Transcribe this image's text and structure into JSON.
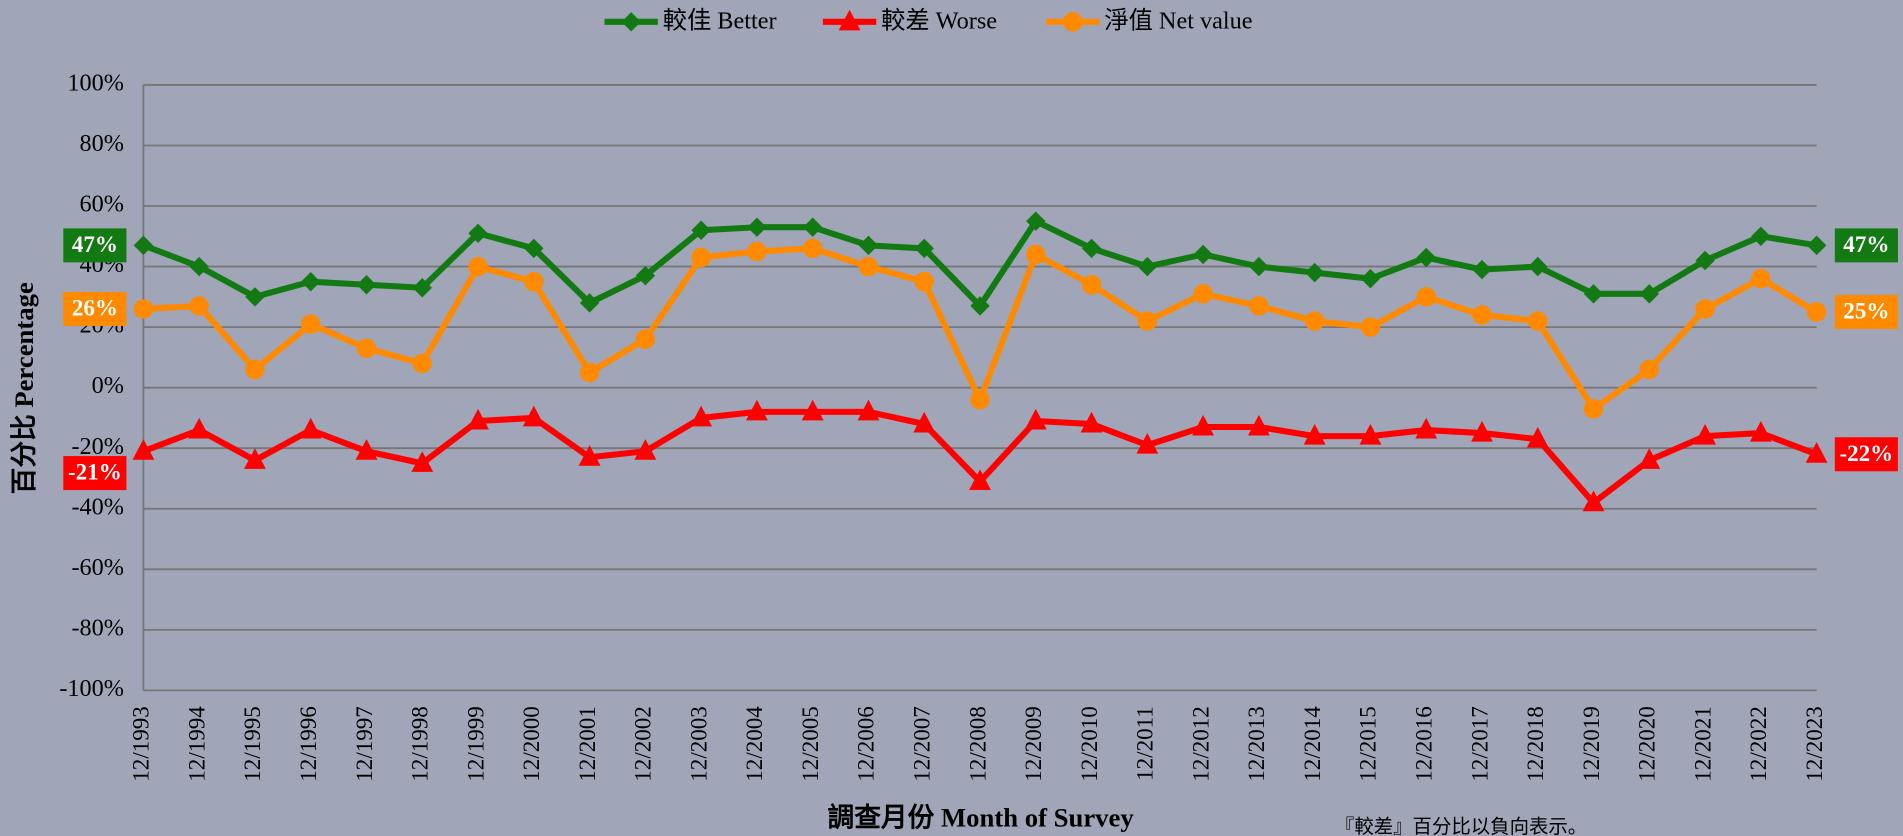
{
  "chart_data": {
    "type": "line",
    "y_label": "百分比 Percentage",
    "x_label": "調查月份 Month of Survey",
    "note": "『較差』百分比以負向表示。",
    "categories": [
      "12/1993",
      "12/1994",
      "12/1995",
      "12/1996",
      "12/1997",
      "12/1998",
      "12/1999",
      "12/2000",
      "12/2001",
      "12/2002",
      "12/2003",
      "12/2004",
      "12/2005",
      "12/2006",
      "12/2007",
      "12/2008",
      "12/2009",
      "12/2010",
      "12/2011",
      "12/2012",
      "12/2013",
      "12/2014",
      "12/2015",
      "12/2016",
      "12/2017",
      "12/2018",
      "12/2019",
      "12/2020",
      "12/2021",
      "12/2022",
      "12/2023"
    ],
    "series": [
      {
        "name": "較佳 Better",
        "color": "#137a13",
        "marker": "diamond",
        "values": [
          47,
          40,
          30,
          35,
          34,
          33,
          51,
          46,
          28,
          37,
          52,
          53,
          53,
          47,
          46,
          27,
          55,
          46,
          40,
          44,
          40,
          38,
          36,
          43,
          39,
          40,
          31,
          31,
          42,
          50,
          47
        ],
        "value_labels": [
          "47%",
          null,
          null,
          null,
          null,
          null,
          null,
          null,
          null,
          null,
          null,
          null,
          null,
          null,
          null,
          null,
          null,
          null,
          null,
          null,
          null,
          null,
          null,
          null,
          null,
          null,
          null,
          null,
          null,
          null,
          "47%"
        ]
      },
      {
        "name": "較差 Worse",
        "color": "#ff0000",
        "marker": "triangle",
        "values": [
          -21,
          -14,
          -24,
          -14,
          -21,
          -25,
          -11,
          -10,
          -23,
          -21,
          -10,
          -8,
          -8,
          -8,
          -12,
          -31,
          -11,
          -12,
          -19,
          -13,
          -13,
          -16,
          -16,
          -14,
          -15,
          -17,
          -38,
          -24,
          -16,
          -15,
          -22
        ],
        "value_labels": [
          "-21%",
          null,
          null,
          null,
          null,
          null,
          null,
          null,
          null,
          null,
          null,
          null,
          null,
          null,
          null,
          null,
          null,
          null,
          null,
          null,
          null,
          null,
          null,
          null,
          null,
          null,
          null,
          null,
          null,
          null,
          "-22%"
        ]
      },
      {
        "name": "淨值 Net value",
        "color": "#ff8a00",
        "marker": "circle",
        "values": [
          26,
          27,
          6,
          21,
          13,
          8,
          40,
          35,
          5,
          16,
          43,
          45,
          46,
          40,
          35,
          -4,
          44,
          34,
          22,
          31,
          27,
          22,
          20,
          30,
          24,
          22,
          -7,
          6,
          26,
          36,
          25
        ],
        "value_labels": [
          "26%",
          null,
          null,
          null,
          null,
          null,
          null,
          null,
          null,
          null,
          null,
          null,
          null,
          null,
          null,
          null,
          null,
          null,
          null,
          null,
          null,
          null,
          null,
          null,
          null,
          null,
          null,
          null,
          null,
          null,
          "25%"
        ]
      }
    ],
    "ylim": [
      -100,
      100
    ],
    "yticks": [
      {
        "value": -100,
        "label": "-100%"
      },
      {
        "value": -80,
        "label": "-80%"
      },
      {
        "value": -60,
        "label": "-60%"
      },
      {
        "value": -40,
        "label": "-40%"
      },
      {
        "value": -20,
        "label": "-20%"
      },
      {
        "value": 0,
        "label": "0%"
      },
      {
        "value": 20,
        "label": "20%"
      },
      {
        "value": 40,
        "label": "40%"
      },
      {
        "value": 60,
        "label": "60%"
      },
      {
        "value": 80,
        "label": "80%"
      },
      {
        "value": 100,
        "label": "100%"
      }
    ],
    "grid": true,
    "legend": "top"
  }
}
